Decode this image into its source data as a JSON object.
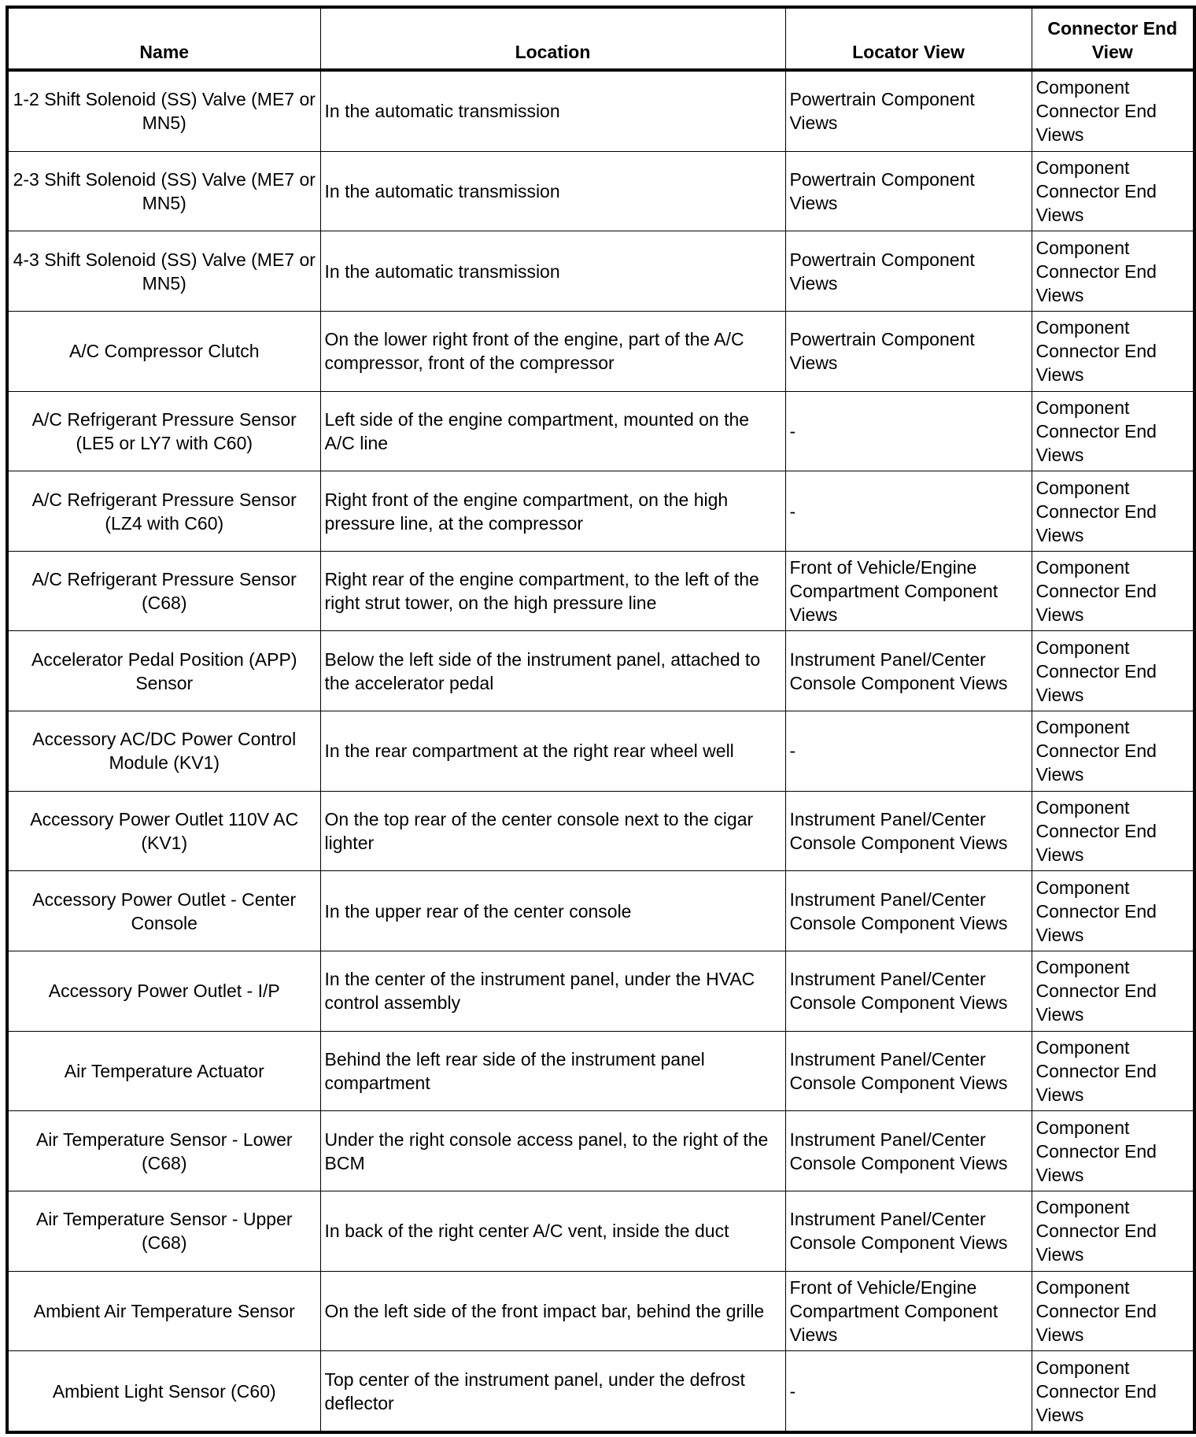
{
  "headers": {
    "name": "Name",
    "location": "Location",
    "locator_view": "Locator View",
    "connector_end_view": "Connector End View"
  },
  "rows": [
    {
      "name": "1-2 Shift Solenoid (SS) Valve (ME7 or MN5)",
      "location": "In the automatic transmission",
      "locator_view": "Powertrain Component Views",
      "connector_end_view": "Component Connector End Views"
    },
    {
      "name": "2-3 Shift Solenoid (SS) Valve (ME7 or MN5)",
      "location": "In the automatic transmission",
      "locator_view": "Powertrain Component Views",
      "connector_end_view": "Component Connector End Views"
    },
    {
      "name": "4-3 Shift Solenoid (SS) Valve (ME7 or MN5)",
      "location": "In the automatic transmission",
      "locator_view": "Powertrain Component Views",
      "connector_end_view": "Component Connector End Views"
    },
    {
      "name": "A/C Compressor Clutch",
      "location": "On the lower right front of the engine, part of the A/C compressor, front of the compressor",
      "locator_view": "Powertrain Component Views",
      "connector_end_view": "Component Connector End Views"
    },
    {
      "name": "A/C Refrigerant Pressure Sensor (LE5 or LY7 with C60)",
      "location": "Left side of the engine compartment, mounted on the A/C line",
      "locator_view": "-",
      "connector_end_view": "Component Connector End Views"
    },
    {
      "name": "A/C Refrigerant Pressure Sensor (LZ4 with C60)",
      "location": "Right front of the engine compartment, on the high pressure line, at the compressor",
      "locator_view": "-",
      "connector_end_view": "Component Connector End Views"
    },
    {
      "name": "A/C Refrigerant Pressure Sensor (C68)",
      "location": "Right rear of the engine compartment, to the left of the right strut tower, on the high pressure line",
      "locator_view": "Front of Vehicle/Engine Compartment Component Views",
      "connector_end_view": "Component Connector End Views"
    },
    {
      "name": "Accelerator Pedal Position (APP) Sensor",
      "location": "Below the left side of the instrument panel, attached to the accelerator pedal",
      "locator_view": "Instrument Panel/Center Console Component Views",
      "connector_end_view": "Component Connector End Views"
    },
    {
      "name": "Accessory AC/DC Power Control Module (KV1)",
      "location": "In the rear compartment at the right rear wheel well",
      "locator_view": "-",
      "connector_end_view": "Component Connector End Views"
    },
    {
      "name": "Accessory Power Outlet 110V AC (KV1)",
      "location": "On the top rear of the center console next to the cigar lighter",
      "locator_view": "Instrument Panel/Center Console Component Views",
      "connector_end_view": "Component Connector End Views"
    },
    {
      "name": "Accessory Power Outlet - Center Console",
      "location": "In the upper rear of the center console",
      "locator_view": "Instrument Panel/Center Console Component Views",
      "connector_end_view": "Component Connector End Views"
    },
    {
      "name": "Accessory Power Outlet - I/P",
      "location": "In the center of the instrument panel, under the HVAC control assembly",
      "locator_view": "Instrument Panel/Center Console Component Views",
      "connector_end_view": "Component Connector End Views"
    },
    {
      "name": "Air Temperature Actuator",
      "location": "Behind the left rear side of the instrument panel compartment",
      "locator_view": "Instrument Panel/Center Console Component Views",
      "connector_end_view": "Component Connector End Views"
    },
    {
      "name": "Air Temperature Sensor - Lower (C68)",
      "location": "Under the right console access panel, to the right of the BCM",
      "locator_view": "Instrument Panel/Center Console Component Views",
      "connector_end_view": "Component Connector End Views"
    },
    {
      "name": "Air Temperature Sensor - Upper (C68)",
      "location": "In back of the right center A/C vent, inside the duct",
      "locator_view": "Instrument Panel/Center Console Component Views",
      "connector_end_view": "Component Connector End Views"
    },
    {
      "name": "Ambient Air Temperature Sensor",
      "location": "On the left side of the front impact bar, behind the grille",
      "locator_view": "Front of Vehicle/Engine Compartment Component Views",
      "connector_end_view": "Component Connector End Views"
    },
    {
      "name": "Ambient Light Sensor (C60)",
      "location": "Top center of the instrument panel, under the defrost deflector",
      "locator_view": "-",
      "connector_end_view": "Component Connector End Views"
    }
  ]
}
